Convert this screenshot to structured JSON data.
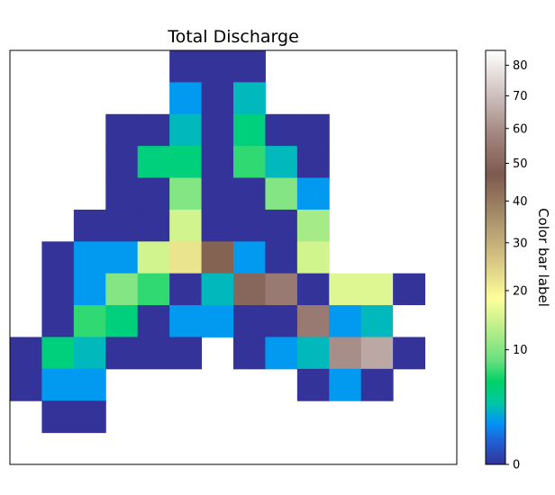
{
  "chart_data": {
    "type": "heatmap",
    "title": "Total Discharge",
    "colorbar": {
      "label": "Color bar label",
      "ticks": [
        0,
        10,
        20,
        30,
        40,
        50,
        60,
        70,
        80
      ],
      "tick_labels": [
        "0",
        "10",
        "20",
        "30",
        "40",
        "50",
        "60",
        "70",
        "80"
      ],
      "range": [
        0,
        85
      ],
      "scale": "nonlinear (power-like)",
      "colormap": "terrain"
    },
    "grid": {
      "rows": 13,
      "cols": 14
    },
    "values": [
      [
        null,
        null,
        null,
        null,
        null,
        0,
        0,
        0,
        null,
        null,
        null,
        null,
        null,
        null
      ],
      [
        null,
        null,
        null,
        null,
        null,
        2,
        0,
        3,
        null,
        null,
        null,
        null,
        null,
        null
      ],
      [
        null,
        null,
        null,
        0,
        0,
        3,
        0,
        5,
        0,
        0,
        null,
        null,
        null,
        null
      ],
      [
        null,
        null,
        null,
        0,
        5,
        5,
        0,
        7,
        3,
        0,
        null,
        null,
        null,
        null
      ],
      [
        null,
        null,
        null,
        0,
        0,
        10,
        0,
        0,
        10,
        2,
        null,
        null,
        null,
        null
      ],
      [
        null,
        null,
        0,
        0,
        0,
        15,
        0,
        0,
        0,
        12,
        null,
        null,
        null,
        null
      ],
      [
        null,
        0,
        2,
        2,
        15,
        22,
        45,
        2,
        0,
        15,
        null,
        null,
        null,
        null
      ],
      [
        null,
        0,
        2,
        10,
        7,
        0,
        3,
        50,
        55,
        0,
        16,
        16,
        0,
        null
      ],
      [
        null,
        0,
        7,
        5,
        0,
        2,
        2,
        0,
        0,
        55,
        2,
        3,
        85,
        null
      ],
      [
        0,
        5,
        3,
        0,
        0,
        0,
        null,
        0,
        2,
        3,
        60,
        65,
        0,
        null
      ],
      [
        0,
        2,
        2,
        null,
        null,
        null,
        null,
        null,
        null,
        0,
        2,
        0,
        null,
        null
      ],
      [
        null,
        0,
        0,
        null,
        null,
        null,
        null,
        null,
        null,
        null,
        null,
        null,
        null,
        null
      ],
      [
        null,
        null,
        null,
        null,
        null,
        null,
        null,
        null,
        null,
        null,
        null,
        null,
        null,
        null
      ]
    ]
  }
}
